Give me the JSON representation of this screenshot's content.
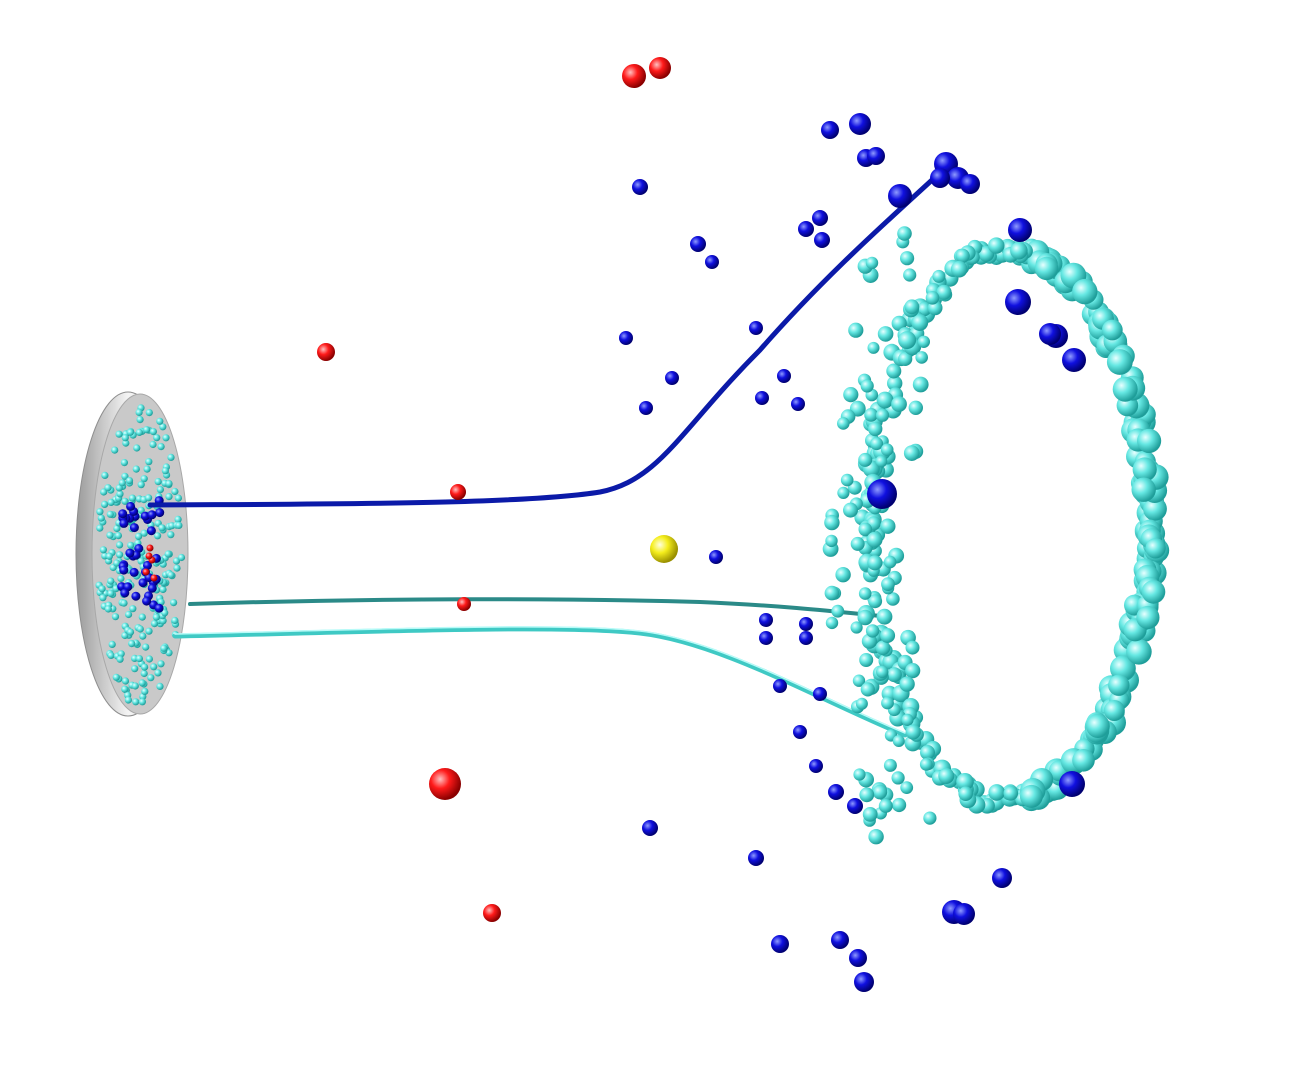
{
  "colors": {
    "background": "#ffffff",
    "cyan_particle": "#5ee6e0",
    "blue_particle": "#0a0ad6",
    "red_particle": "#ff1a1a",
    "yellow_particle": "#f5ee1c",
    "disk_face": "#c8c8c8",
    "disk_rim": "#f2f2f2",
    "trajectory_blue": "#0b1aa8",
    "trajectory_teal": "#2f8f8f",
    "trajectory_cyan": "#5ee6e0"
  },
  "legend": [],
  "title": ""
}
